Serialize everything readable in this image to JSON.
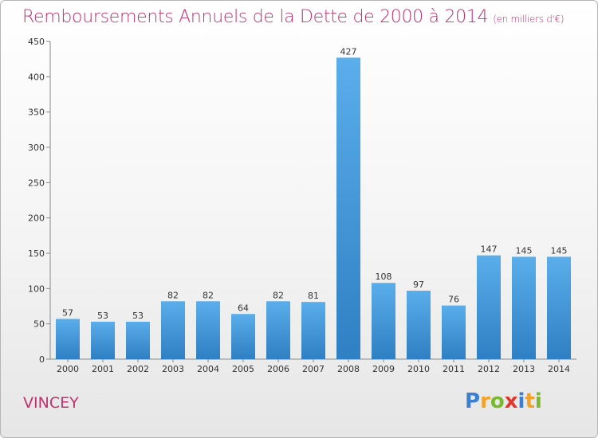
{
  "chart_data": {
    "type": "bar",
    "title": "Remboursements Annuels de la Dette de 2000 à 2014",
    "subtitle": "(en milliers d'€)",
    "categories": [
      "2000",
      "2001",
      "2002",
      "2003",
      "2004",
      "2005",
      "2006",
      "2007",
      "2008",
      "2009",
      "2010",
      "2011",
      "2012",
      "2013",
      "2014"
    ],
    "values": [
      57,
      53,
      53,
      82,
      82,
      64,
      82,
      81,
      427,
      108,
      97,
      76,
      147,
      145,
      145
    ],
    "ylim": [
      0,
      450
    ],
    "yticks": [
      0,
      50,
      100,
      150,
      200,
      250,
      300,
      350,
      400,
      450
    ],
    "grid": false,
    "bar_color": "#4a9fdf"
  },
  "commune": "VINCEY",
  "logo": {
    "letters": [
      "P",
      "r",
      "o",
      "x",
      "i",
      "t",
      "i"
    ],
    "colors": [
      "#3a7fd0",
      "#f2a224",
      "#7ab82e",
      "#e2362b",
      "#3a7fd0",
      "#f2a224",
      "#7ab82e"
    ]
  },
  "colors": {
    "accent": "#c0316f"
  }
}
